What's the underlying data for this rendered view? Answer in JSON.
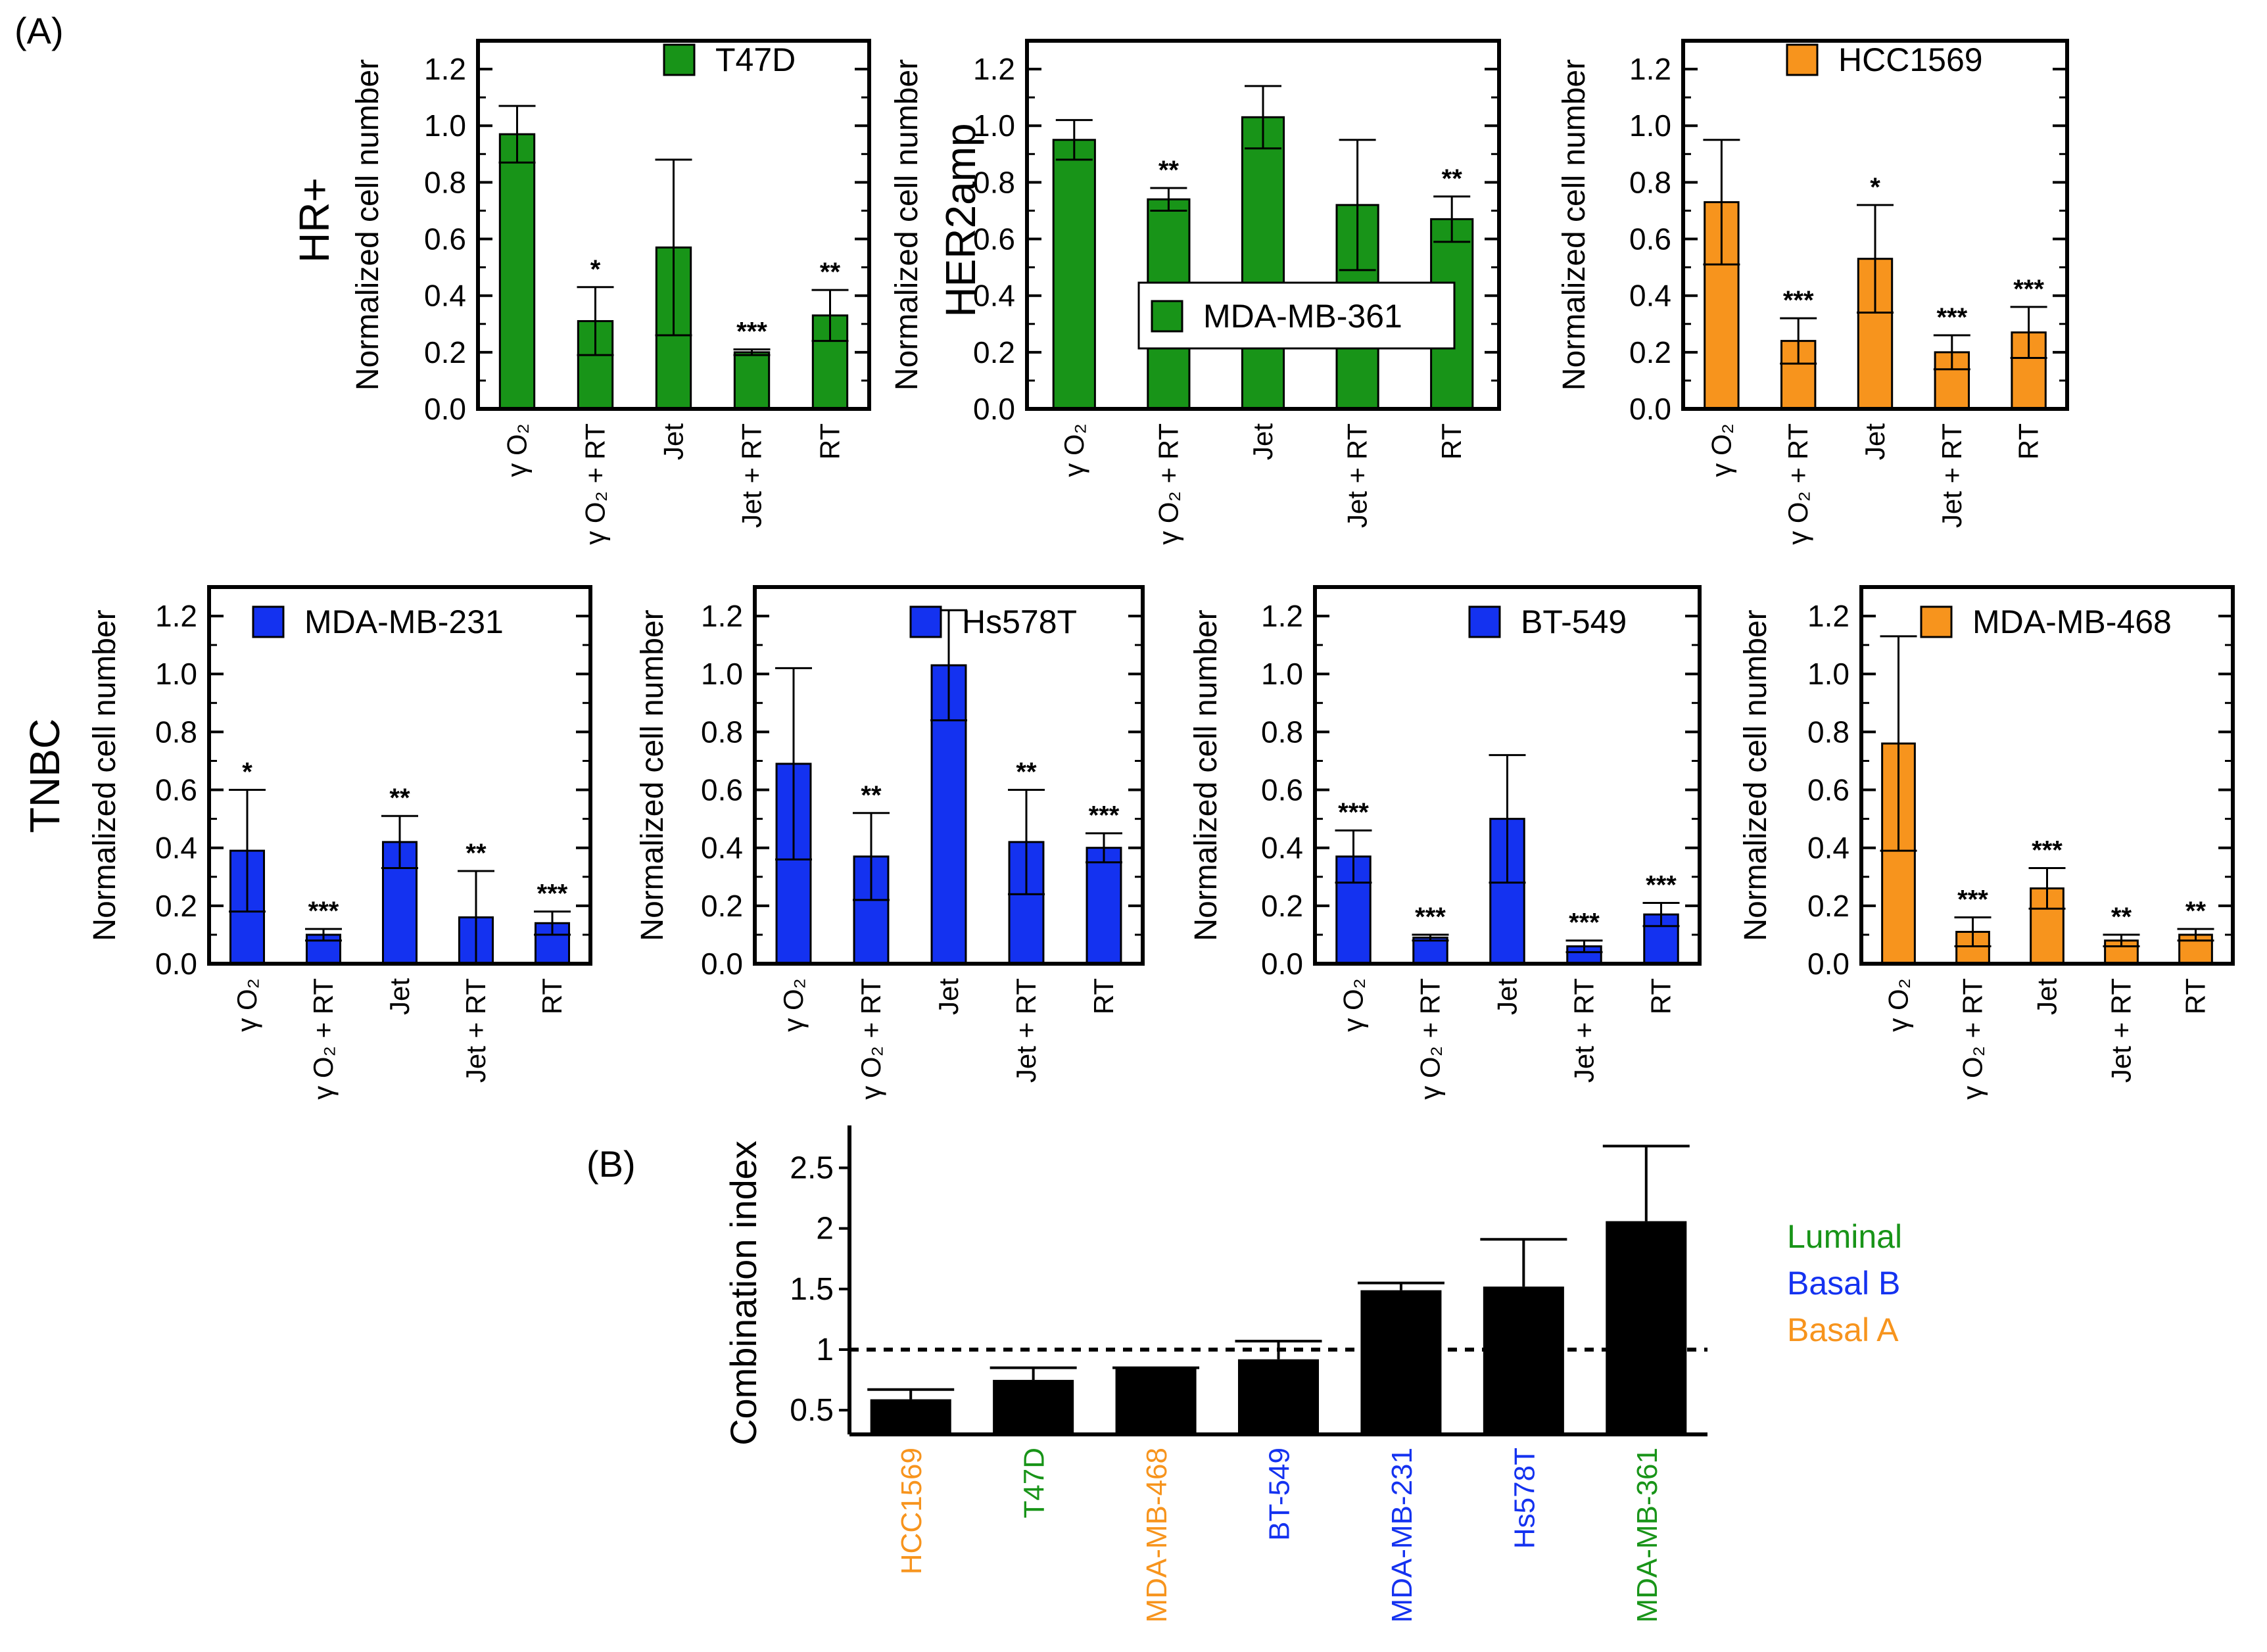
{
  "labels": {
    "panel_a": "(A)",
    "panel_b": "(B)",
    "row_hr": "HR+",
    "row_her2": "HER2amp",
    "row_tnbc": "TNBC"
  },
  "colors": {
    "luminal": "#189418",
    "basal_b": "#1432f0",
    "basal_a": "#f7941d",
    "bar_black": "#000000"
  },
  "group_legend": [
    {
      "label": "Luminal",
      "color": "#189418"
    },
    {
      "label": "Basal B",
      "color": "#1432f0"
    },
    {
      "label": "Basal A",
      "color": "#f7941d"
    }
  ],
  "chart_data": [
    {
      "type": "bar",
      "title": "T47D",
      "legend": "T47D",
      "color": "#189418",
      "ylabel": "Normalized cell number",
      "ylim": [
        0,
        1.3
      ],
      "yticks": [
        "0.0",
        "0.2",
        "0.4",
        "0.6",
        "0.8",
        "1.0",
        "1.2"
      ],
      "categories": [
        "γ O₂",
        "γ O₂ + RT",
        "Jet",
        "Jet + RT",
        "RT"
      ],
      "values": [
        0.97,
        0.31,
        0.57,
        0.2,
        0.33
      ],
      "errors": [
        0.1,
        0.12,
        0.31,
        0.01,
        0.09
      ],
      "stars": [
        "",
        "*",
        "",
        "***",
        "**"
      ]
    },
    {
      "type": "bar",
      "title": "MDA-MB-361",
      "legend": "MDA-MB-361",
      "color": "#189418",
      "ylabel": "Normalized cell number",
      "ylim": [
        0,
        1.3
      ],
      "yticks": [
        "0.0",
        "0.2",
        "0.4",
        "0.6",
        "0.8",
        "1.0",
        "1.2"
      ],
      "categories": [
        "γ O₂",
        "γ O₂ + RT",
        "Jet",
        "Jet + RT",
        "RT"
      ],
      "values": [
        0.95,
        0.74,
        1.03,
        0.72,
        0.67
      ],
      "errors": [
        0.07,
        0.04,
        0.11,
        0.23,
        0.08
      ],
      "stars": [
        "",
        "**",
        "",
        "",
        "**"
      ]
    },
    {
      "type": "bar",
      "title": "HCC1569",
      "legend": "HCC1569",
      "color": "#f7941d",
      "ylabel": "Normalized cell number",
      "ylim": [
        0,
        1.3
      ],
      "yticks": [
        "0.0",
        "0.2",
        "0.4",
        "0.6",
        "0.8",
        "1.0",
        "1.2"
      ],
      "categories": [
        "γ O₂",
        "γ O₂ + RT",
        "Jet",
        "Jet + RT",
        "RT"
      ],
      "values": [
        0.73,
        0.24,
        0.53,
        0.2,
        0.27
      ],
      "errors": [
        0.22,
        0.08,
        0.19,
        0.06,
        0.09
      ],
      "stars": [
        "",
        "***",
        "*",
        "***",
        "***"
      ]
    },
    {
      "type": "bar",
      "title": "MDA-MB-231",
      "legend": "MDA-MB-231",
      "color": "#1432f0",
      "ylabel": "Normalized cell number",
      "ylim": [
        0,
        1.3
      ],
      "yticks": [
        "0.0",
        "0.2",
        "0.4",
        "0.6",
        "0.8",
        "1.0",
        "1.2"
      ],
      "categories": [
        "γ O₂",
        "γ O₂ + RT",
        "Jet",
        "Jet + RT",
        "RT"
      ],
      "values": [
        0.39,
        0.1,
        0.42,
        0.16,
        0.14
      ],
      "errors": [
        0.21,
        0.02,
        0.09,
        0.16,
        0.04
      ],
      "stars": [
        "*",
        "***",
        "**",
        "**",
        "***"
      ]
    },
    {
      "type": "bar",
      "title": "Hs578T",
      "legend": "Hs578T",
      "color": "#1432f0",
      "ylabel": "Normalized cell number",
      "ylim": [
        0,
        1.3
      ],
      "yticks": [
        "0.0",
        "0.2",
        "0.4",
        "0.6",
        "0.8",
        "1.0",
        "1.2"
      ],
      "categories": [
        "γ O₂",
        "γ O₂ + RT",
        "Jet",
        "Jet + RT",
        "RT"
      ],
      "values": [
        0.69,
        0.37,
        1.03,
        0.42,
        0.4
      ],
      "errors": [
        0.33,
        0.15,
        0.19,
        0.18,
        0.05
      ],
      "stars": [
        "",
        "**",
        "",
        "**",
        "***"
      ]
    },
    {
      "type": "bar",
      "title": "BT-549",
      "legend": "BT-549",
      "color": "#1432f0",
      "ylabel": "Normalized cell number",
      "ylim": [
        0,
        1.3
      ],
      "yticks": [
        "0.0",
        "0.2",
        "0.4",
        "0.6",
        "0.8",
        "1.0",
        "1.2"
      ],
      "categories": [
        "γ O₂",
        "γ O₂ + RT",
        "Jet",
        "Jet + RT",
        "RT"
      ],
      "values": [
        0.37,
        0.09,
        0.5,
        0.06,
        0.17
      ],
      "errors": [
        0.09,
        0.01,
        0.22,
        0.02,
        0.04
      ],
      "stars": [
        "***",
        "***",
        "",
        "***",
        "***"
      ]
    },
    {
      "type": "bar",
      "title": "MDA-MB-468",
      "legend": "MDA-MB-468",
      "color": "#f7941d",
      "ylabel": "Normalized cell number",
      "ylim": [
        0,
        1.3
      ],
      "yticks": [
        "0.0",
        "0.2",
        "0.4",
        "0.6",
        "0.8",
        "1.0",
        "1.2"
      ],
      "categories": [
        "γ O₂",
        "γ O₂ + RT",
        "Jet",
        "Jet + RT",
        "RT"
      ],
      "values": [
        0.76,
        0.11,
        0.26,
        0.08,
        0.1
      ],
      "errors": [
        0.37,
        0.05,
        0.07,
        0.02,
        0.02
      ],
      "stars": [
        "",
        "***",
        "***",
        "**",
        "**"
      ]
    },
    {
      "type": "bar",
      "title": "Combination index",
      "color": "#000000",
      "ylabel": "Combination index",
      "ylim": [
        0.3,
        2.85
      ],
      "yticks": [
        "0.5",
        "1",
        "1.5",
        "2",
        "2.5"
      ],
      "reference_line": 1.0,
      "categories": [
        "HCC1569",
        "T47D",
        "MDA-MB-468",
        "BT-549",
        "MDA-MB-231",
        "Hs578T",
        "MDA-MB-361"
      ],
      "category_colors": [
        "#f7941d",
        "#189418",
        "#f7941d",
        "#1432f0",
        "#1432f0",
        "#1432f0",
        "#189418"
      ],
      "values": [
        0.59,
        0.75,
        0.85,
        0.92,
        1.49,
        1.52,
        2.06
      ],
      "errors": [
        0.08,
        0.1,
        0.0,
        0.15,
        0.06,
        0.39,
        0.62
      ]
    }
  ]
}
